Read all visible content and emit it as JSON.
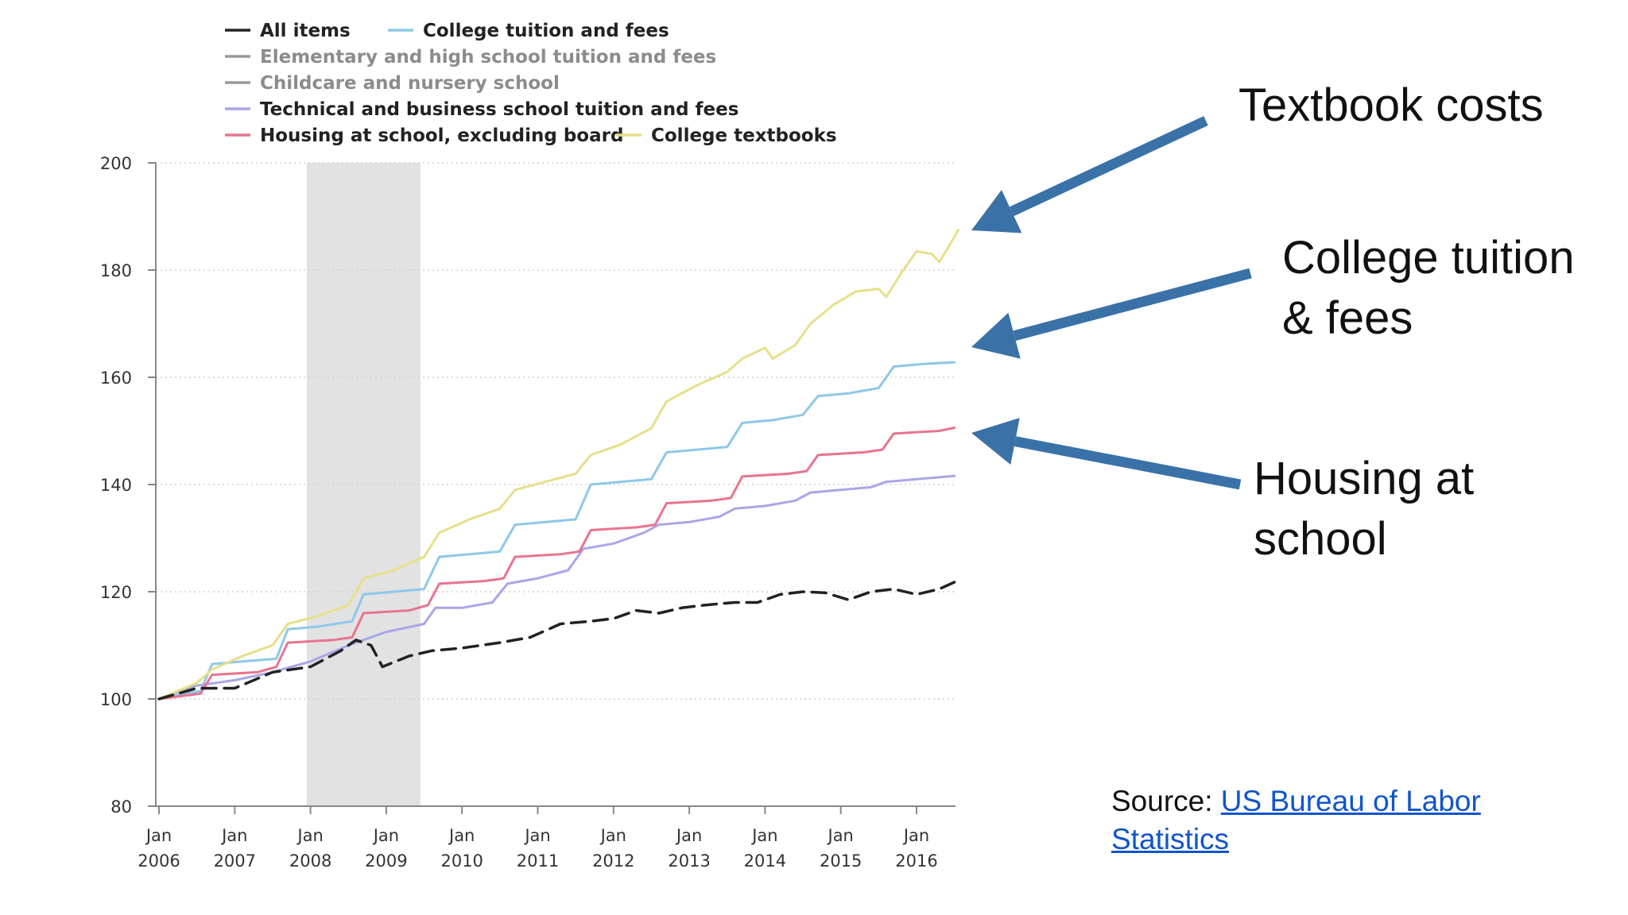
{
  "chart_data": {
    "type": "line",
    "title": "",
    "xlabel": "",
    "ylabel": "",
    "ylim": [
      80,
      200
    ],
    "yticks": [
      80,
      100,
      120,
      140,
      160,
      180,
      200
    ],
    "xlim": [
      2006.0,
      2016.6
    ],
    "xticks": [
      {
        "month": "Jan",
        "year": "2006",
        "x": 2006
      },
      {
        "month": "Jan",
        "year": "2007",
        "x": 2007
      },
      {
        "month": "Jan",
        "year": "2008",
        "x": 2008
      },
      {
        "month": "Jan",
        "year": "2009",
        "x": 2009
      },
      {
        "month": "Jan",
        "year": "2010",
        "x": 2010
      },
      {
        "month": "Jan",
        "year": "2011",
        "x": 2011
      },
      {
        "month": "Jan",
        "year": "2012",
        "x": 2012
      },
      {
        "month": "Jan",
        "year": "2013",
        "x": 2013
      },
      {
        "month": "Jan",
        "year": "2014",
        "x": 2014
      },
      {
        "month": "Jan",
        "year": "2015",
        "x": 2015
      },
      {
        "month": "Jan",
        "year": "2016",
        "x": 2016
      }
    ],
    "grid": "horizontal-dotted",
    "legend_position": "top",
    "recession_band": [
      2007.95,
      2009.45
    ],
    "series": [
      {
        "name": "All items",
        "color": "#222222",
        "dash": true,
        "legend": true,
        "muted": false,
        "points": [
          [
            2006.0,
            100
          ],
          [
            2006.5,
            102
          ],
          [
            2007.0,
            102
          ],
          [
            2007.5,
            105
          ],
          [
            2008.0,
            106
          ],
          [
            2008.4,
            109
          ],
          [
            2008.6,
            111
          ],
          [
            2008.8,
            110
          ],
          [
            2008.95,
            106
          ],
          [
            2009.3,
            108
          ],
          [
            2009.6,
            109
          ],
          [
            2010.0,
            109.5
          ],
          [
            2010.5,
            110.5
          ],
          [
            2010.9,
            111.5
          ],
          [
            2011.3,
            114
          ],
          [
            2011.7,
            114.5
          ],
          [
            2012.0,
            115
          ],
          [
            2012.3,
            116.5
          ],
          [
            2012.6,
            116
          ],
          [
            2012.9,
            117
          ],
          [
            2013.2,
            117.5
          ],
          [
            2013.6,
            118
          ],
          [
            2013.9,
            118
          ],
          [
            2014.2,
            119.5
          ],
          [
            2014.5,
            120
          ],
          [
            2014.8,
            119.8
          ],
          [
            2015.1,
            118.5
          ],
          [
            2015.4,
            120
          ],
          [
            2015.7,
            120.5
          ],
          [
            2016.0,
            119.5
          ],
          [
            2016.3,
            120.5
          ],
          [
            2016.5,
            121.8
          ]
        ]
      },
      {
        "name": "College tuition and fees",
        "color": "#8ec8e8",
        "legend": true,
        "muted": false,
        "points": [
          [
            2006.0,
            100
          ],
          [
            2006.55,
            101.5
          ],
          [
            2006.7,
            106.5
          ],
          [
            2007.1,
            107
          ],
          [
            2007.55,
            107.5
          ],
          [
            2007.7,
            113
          ],
          [
            2008.1,
            113.5
          ],
          [
            2008.55,
            114.5
          ],
          [
            2008.7,
            119.5
          ],
          [
            2009.1,
            120
          ],
          [
            2009.5,
            120.5
          ],
          [
            2009.7,
            126.5
          ],
          [
            2010.1,
            127
          ],
          [
            2010.5,
            127.5
          ],
          [
            2010.7,
            132.5
          ],
          [
            2011.1,
            133
          ],
          [
            2011.5,
            133.5
          ],
          [
            2011.7,
            140
          ],
          [
            2012.1,
            140.5
          ],
          [
            2012.5,
            141
          ],
          [
            2012.7,
            146
          ],
          [
            2013.1,
            146.5
          ],
          [
            2013.5,
            147
          ],
          [
            2013.7,
            151.5
          ],
          [
            2014.1,
            152
          ],
          [
            2014.5,
            153
          ],
          [
            2014.7,
            156.5
          ],
          [
            2015.1,
            157
          ],
          [
            2015.5,
            158
          ],
          [
            2015.7,
            162
          ],
          [
            2016.1,
            162.5
          ],
          [
            2016.5,
            162.8
          ]
        ]
      },
      {
        "name": "Elementary and high school tuition and fees",
        "color": "#999999",
        "legend": true,
        "muted": true,
        "points": []
      },
      {
        "name": "Childcare and nursery school",
        "color": "#999999",
        "legend": true,
        "muted": true,
        "points": []
      },
      {
        "name": "Technical and business school tuition and fees",
        "color": "#a9a6e6",
        "legend": true,
        "muted": false,
        "points": [
          [
            2006.0,
            100
          ],
          [
            2006.5,
            102.5
          ],
          [
            2007.0,
            103.5
          ],
          [
            2007.5,
            105
          ],
          [
            2008.0,
            107
          ],
          [
            2008.5,
            110
          ],
          [
            2009.0,
            112.5
          ],
          [
            2009.5,
            114
          ],
          [
            2009.65,
            117
          ],
          [
            2010.0,
            117
          ],
          [
            2010.4,
            118
          ],
          [
            2010.6,
            121.5
          ],
          [
            2011.0,
            122.5
          ],
          [
            2011.4,
            124
          ],
          [
            2011.6,
            128
          ],
          [
            2012.0,
            129
          ],
          [
            2012.4,
            131
          ],
          [
            2012.6,
            132.5
          ],
          [
            2013.0,
            133
          ],
          [
            2013.4,
            134
          ],
          [
            2013.6,
            135.5
          ],
          [
            2014.0,
            136
          ],
          [
            2014.4,
            137
          ],
          [
            2014.6,
            138.5
          ],
          [
            2015.0,
            139
          ],
          [
            2015.4,
            139.5
          ],
          [
            2015.6,
            140.5
          ],
          [
            2016.0,
            141
          ],
          [
            2016.5,
            141.6
          ]
        ]
      },
      {
        "name": "Housing at school, excluding board",
        "color": "#e8748f",
        "legend": true,
        "muted": false,
        "points": [
          [
            2006.0,
            100
          ],
          [
            2006.55,
            101
          ],
          [
            2006.7,
            104.5
          ],
          [
            2007.3,
            105
          ],
          [
            2007.55,
            106
          ],
          [
            2007.7,
            110.5
          ],
          [
            2008.3,
            111
          ],
          [
            2008.55,
            111.5
          ],
          [
            2008.7,
            116
          ],
          [
            2009.3,
            116.5
          ],
          [
            2009.55,
            117.5
          ],
          [
            2009.7,
            121.5
          ],
          [
            2010.3,
            122
          ],
          [
            2010.55,
            122.5
          ],
          [
            2010.7,
            126.5
          ],
          [
            2011.3,
            127
          ],
          [
            2011.55,
            127.5
          ],
          [
            2011.7,
            131.5
          ],
          [
            2012.3,
            132
          ],
          [
            2012.55,
            132.5
          ],
          [
            2012.7,
            136.5
          ],
          [
            2013.3,
            137
          ],
          [
            2013.55,
            137.5
          ],
          [
            2013.7,
            141.5
          ],
          [
            2014.3,
            142
          ],
          [
            2014.55,
            142.5
          ],
          [
            2014.7,
            145.5
          ],
          [
            2015.3,
            146
          ],
          [
            2015.55,
            146.5
          ],
          [
            2015.7,
            149.5
          ],
          [
            2016.3,
            150
          ],
          [
            2016.5,
            150.6
          ]
        ]
      },
      {
        "name": "College textbooks",
        "color": "#e6e08a",
        "legend": true,
        "muted": false,
        "points": [
          [
            2006.0,
            100
          ],
          [
            2006.5,
            103
          ],
          [
            2006.7,
            105.5
          ],
          [
            2007.1,
            108
          ],
          [
            2007.5,
            110
          ],
          [
            2007.7,
            114
          ],
          [
            2008.1,
            115.5
          ],
          [
            2008.5,
            117.5
          ],
          [
            2008.7,
            122.5
          ],
          [
            2009.1,
            124
          ],
          [
            2009.5,
            126.5
          ],
          [
            2009.7,
            131
          ],
          [
            2010.1,
            133.5
          ],
          [
            2010.5,
            135.5
          ],
          [
            2010.7,
            139
          ],
          [
            2011.1,
            140.5
          ],
          [
            2011.5,
            142
          ],
          [
            2011.7,
            145.5
          ],
          [
            2012.1,
            147.5
          ],
          [
            2012.5,
            150.5
          ],
          [
            2012.7,
            155.5
          ],
          [
            2013.1,
            158.5
          ],
          [
            2013.5,
            161
          ],
          [
            2013.7,
            163.5
          ],
          [
            2014.0,
            165.5
          ],
          [
            2014.1,
            163.5
          ],
          [
            2014.4,
            166
          ],
          [
            2014.6,
            170
          ],
          [
            2014.9,
            173.5
          ],
          [
            2015.2,
            176
          ],
          [
            2015.5,
            176.5
          ],
          [
            2015.6,
            175
          ],
          [
            2015.8,
            179.5
          ],
          [
            2016.0,
            183.5
          ],
          [
            2016.2,
            183
          ],
          [
            2016.3,
            181.5
          ],
          [
            2016.45,
            185
          ],
          [
            2016.55,
            187.5
          ]
        ]
      }
    ]
  },
  "callouts": [
    {
      "lines": [
        "Textbook costs"
      ],
      "target_series": "College textbooks"
    },
    {
      "lines": [
        "College tuition",
        "& fees"
      ],
      "target_series": "College tuition and fees"
    },
    {
      "lines": [
        "Housing at",
        "school"
      ],
      "target_series": "Housing at school, excluding board"
    }
  ],
  "source": {
    "prefix": "Source: ",
    "link_text": "US Bureau of Labor Statistics"
  },
  "colors": {
    "arrow": "#3a72a8",
    "recession": "#e2e2e2",
    "link": "#1155cc"
  }
}
